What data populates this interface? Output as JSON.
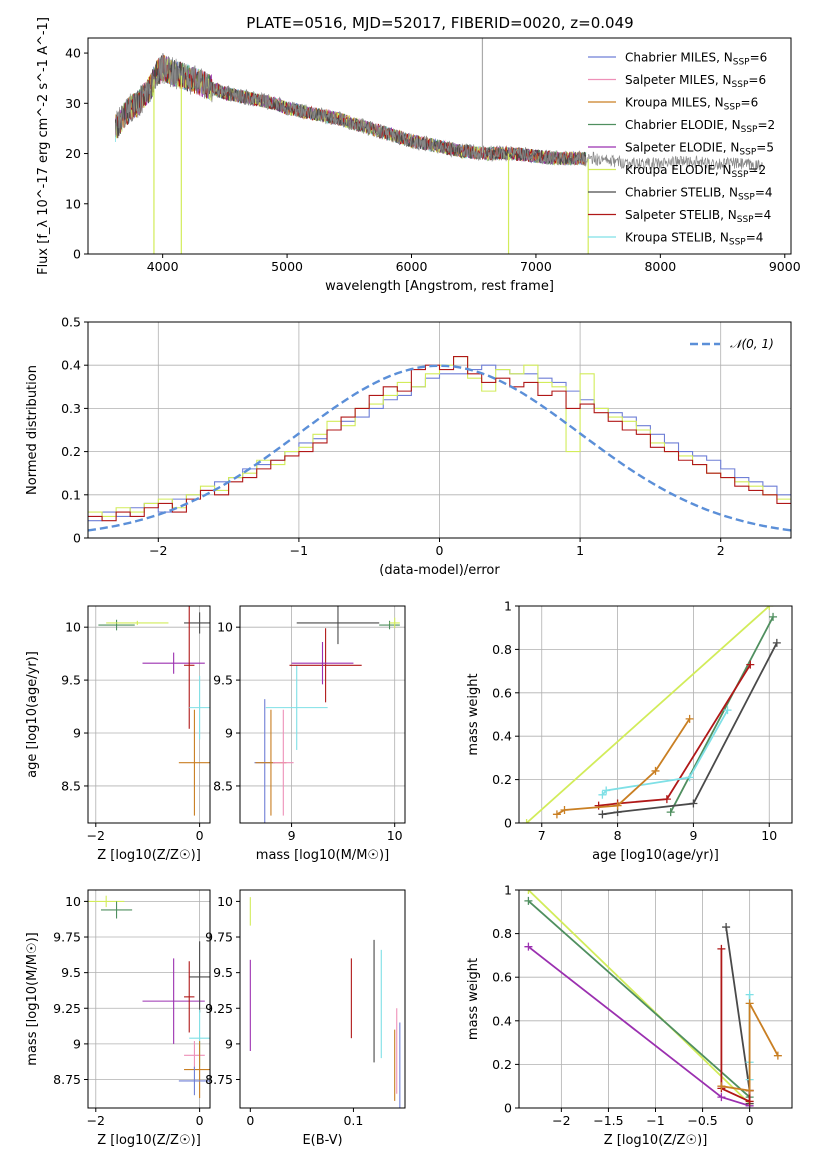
{
  "figure": {
    "title": "PLATE=0516, MJD=52017, FIBERID=0020, z=0.049"
  },
  "colors": {
    "chabrier_miles": "#6f7fd6",
    "salpeter_miles": "#ee90b8",
    "kroupa_miles": "#c97f23",
    "chabrier_elodie": "#4f8f5f",
    "salpeter_elodie": "#9b30b0",
    "kroupa_elodie": "#d2ec5a",
    "chabrier_stelib": "#4a4a4a",
    "salpeter_stelib": "#b01818",
    "kroupa_stelib": "#7fe0e6",
    "normal_curve": "#5b8fd8",
    "grid": "#b0b0b0",
    "spectrum": "#888888"
  },
  "chart_data": [
    {
      "id": "spectrum",
      "type": "line",
      "title": "PLATE=0516, MJD=52017, FIBERID=0020, z=0.049",
      "xlabel": "wavelength [Angstrom, rest frame]",
      "ylabel": "Flux [f_λ 10^-17 erg cm^-2 s^-1 A^-1]",
      "xlim": [
        3400,
        9050
      ],
      "ylim": [
        0,
        43
      ],
      "xticks": [
        4000,
        5000,
        6000,
        7000,
        8000,
        9000
      ],
      "yticks": [
        0,
        10,
        20,
        30,
        40
      ],
      "grid": false,
      "legend_position": "top-right",
      "legend": [
        {
          "label": "Chabrier MILES, N",
          "sub": "SSP",
          "value": "=6",
          "color_key": "chabrier_miles"
        },
        {
          "label": "Salpeter MILES, N",
          "sub": "SSP",
          "value": "=6",
          "color_key": "salpeter_miles"
        },
        {
          "label": "Kroupa MILES, N",
          "sub": "SSP",
          "value": "=6",
          "color_key": "kroupa_miles"
        },
        {
          "label": "Chabrier ELODIE, N",
          "sub": "SSP",
          "value": "=2",
          "color_key": "chabrier_elodie"
        },
        {
          "label": "Salpeter ELODIE, N",
          "sub": "SSP",
          "value": "=5",
          "color_key": "salpeter_elodie"
        },
        {
          "label": "Kroupa ELODIE, N",
          "sub": "SSP",
          "value": "=2",
          "color_key": "kroupa_elodie"
        },
        {
          "label": "Chabrier STELIB, N",
          "sub": "SSP",
          "value": "=4",
          "color_key": "chabrier_stelib"
        },
        {
          "label": "Salpeter STELIB, N",
          "sub": "SSP",
          "value": "=4",
          "color_key": "salpeter_stelib"
        },
        {
          "label": "Kroupa STELIB, N",
          "sub": "SSP",
          "value": "=4",
          "color_key": "kroupa_stelib"
        }
      ],
      "data_x": [
        3620,
        3700,
        3800,
        3900,
        3950,
        4000,
        4100,
        4200,
        4300,
        4400,
        4500,
        4600,
        4700,
        4800,
        4900,
        5000,
        5200,
        5400,
        5600,
        5800,
        6000,
        6200,
        6400,
        6600,
        6800,
        7000,
        7200,
        7400,
        7600,
        7800,
        8000,
        8200,
        8400,
        8600,
        8800
      ],
      "data_y": [
        25,
        28,
        30,
        33,
        36,
        37,
        36,
        35,
        34,
        33,
        32,
        31.5,
        31,
        30.5,
        30,
        29,
        28,
        27,
        25.5,
        24,
        22.5,
        21.5,
        20.5,
        20,
        20,
        19.5,
        19,
        19,
        18.5,
        18,
        18,
        18.5,
        18,
        18,
        17.5
      ],
      "noise_amplitude": 3.5,
      "extra_features": [
        {
          "x": 3930,
          "note": "dip",
          "to": 0
        },
        {
          "x": 4150,
          "note": "dip",
          "to": 0
        },
        {
          "x": 6780,
          "note": "dip",
          "to": 0
        },
        {
          "x": 7420,
          "note": "dip",
          "to": 0
        },
        {
          "x": 6570,
          "note": "spike",
          "to": 43
        }
      ]
    },
    {
      "id": "residuals",
      "type": "histogram",
      "xlabel": "(data-model)/error",
      "ylabel": "Normed distribution",
      "xlim": [
        -2.5,
        2.5
      ],
      "ylim": [
        0,
        0.5
      ],
      "xticks": [
        -2,
        -1,
        0,
        1,
        2
      ],
      "yticks": [
        0,
        0.1,
        0.2,
        0.3,
        0.4,
        0.5
      ],
      "grid": true,
      "legend_position": "top-right",
      "curve_label": "𝒩(0, 1)",
      "bin_width": 0.1,
      "bin_start": -2.5,
      "series": [
        {
          "color_key": "chabrier_miles",
          "values": [
            0.04,
            0.06,
            0.05,
            0.07,
            0.08,
            0.06,
            0.09,
            0.1,
            0.11,
            0.13,
            0.14,
            0.16,
            0.17,
            0.18,
            0.2,
            0.22,
            0.23,
            0.25,
            0.27,
            0.28,
            0.3,
            0.32,
            0.33,
            0.35,
            0.37,
            0.38,
            0.38,
            0.39,
            0.4,
            0.39,
            0.38,
            0.38,
            0.37,
            0.36,
            0.34,
            0.32,
            0.3,
            0.29,
            0.28,
            0.26,
            0.24,
            0.22,
            0.2,
            0.19,
            0.18,
            0.16,
            0.14,
            0.13,
            0.12,
            0.1
          ]
        },
        {
          "color_key": "kroupa_elodie",
          "values": [
            0.06,
            0.05,
            0.07,
            0.06,
            0.08,
            0.09,
            0.07,
            0.1,
            0.12,
            0.11,
            0.14,
            0.15,
            0.18,
            0.17,
            0.2,
            0.21,
            0.24,
            0.27,
            0.26,
            0.3,
            0.31,
            0.33,
            0.36,
            0.35,
            0.38,
            0.4,
            0.42,
            0.37,
            0.34,
            0.39,
            0.38,
            0.4,
            0.36,
            0.35,
            0.2,
            0.38,
            0.3,
            0.28,
            0.27,
            0.25,
            0.22,
            0.2,
            0.19,
            0.17,
            0.15,
            0.14,
            0.13,
            0.12,
            0.1,
            0.09
          ]
        },
        {
          "color_key": "salpeter_stelib",
          "values": [
            0.05,
            0.04,
            0.06,
            0.05,
            0.07,
            0.08,
            0.06,
            0.09,
            0.11,
            0.1,
            0.13,
            0.14,
            0.16,
            0.18,
            0.19,
            0.2,
            0.22,
            0.25,
            0.28,
            0.3,
            0.33,
            0.35,
            0.34,
            0.39,
            0.4,
            0.39,
            0.42,
            0.38,
            0.36,
            0.37,
            0.35,
            0.36,
            0.33,
            0.34,
            0.3,
            0.31,
            0.29,
            0.27,
            0.25,
            0.24,
            0.21,
            0.2,
            0.18,
            0.17,
            0.15,
            0.14,
            0.12,
            0.11,
            0.1,
            0.08
          ]
        }
      ],
      "normal_curve": {
        "mean": 0,
        "sigma": 1
      }
    },
    {
      "id": "age_vs_Z",
      "type": "errorbar",
      "xlabel": "Z [log10(Z/Z☉)]",
      "ylabel": "age [log10(age/yr)]",
      "xlim": [
        -2.15,
        0.2
      ],
      "ylim": [
        8.15,
        10.2
      ],
      "xticks": [
        -2,
        0
      ],
      "yticks": [
        8.5,
        9.0,
        9.5,
        10.0
      ],
      "grid": true,
      "points": [
        {
          "x": -1.6,
          "y": 10.02,
          "xerr": 0.35,
          "yerr": 0.05,
          "color_key": "chabrier_elodie"
        },
        {
          "x": -1.2,
          "y": 10.04,
          "xerr": 0.6,
          "yerr": 0.02,
          "color_key": "kroupa_elodie"
        },
        {
          "x": -0.5,
          "y": 9.66,
          "xerr": 0.6,
          "yerr": 0.1,
          "color_key": "salpeter_elodie"
        },
        {
          "x": 0.0,
          "y": 10.04,
          "xerr": 0.3,
          "yerr": 0.1,
          "color_key": "chabrier_stelib"
        },
        {
          "x": -0.2,
          "y": 9.64,
          "xerr": 0.1,
          "yerr": 0.6,
          "color_key": "salpeter_stelib"
        },
        {
          "x": 0.0,
          "y": 9.24,
          "xerr": 0.2,
          "yerr": 0.3,
          "color_key": "kroupa_stelib"
        },
        {
          "x": -0.1,
          "y": 8.72,
          "xerr": 0.3,
          "yerr": 0.5,
          "color_key": "kroupa_miles"
        }
      ]
    },
    {
      "id": "age_vs_mass",
      "type": "errorbar",
      "xlabel": "mass [log10(M/M☉)]",
      "ylabel": "",
      "xlim": [
        8.5,
        10.1
      ],
      "ylim": [
        8.15,
        10.2
      ],
      "xticks": [
        9,
        10
      ],
      "yticks": [
        8.5,
        9.0,
        9.5,
        10.0
      ],
      "grid": true,
      "points": [
        {
          "x": 8.74,
          "y": 8.72,
          "xerr": 0.1,
          "yerr": 0.6,
          "color_key": "chabrier_miles"
        },
        {
          "x": 8.8,
          "y": 8.72,
          "xerr": 0.15,
          "yerr": 0.5,
          "color_key": "kroupa_miles"
        },
        {
          "x": 8.92,
          "y": 8.72,
          "xerr": 0.1,
          "yerr": 0.5,
          "color_key": "salpeter_miles"
        },
        {
          "x": 9.05,
          "y": 9.24,
          "xerr": 0.3,
          "yerr": 0.4,
          "color_key": "kroupa_stelib"
        },
        {
          "x": 9.33,
          "y": 9.64,
          "xerr": 0.35,
          "yerr": 0.35,
          "color_key": "salpeter_stelib"
        },
        {
          "x": 9.45,
          "y": 10.04,
          "xerr": 0.4,
          "yerr": 0.2,
          "color_key": "chabrier_stelib"
        },
        {
          "x": 9.3,
          "y": 9.66,
          "xerr": 0.3,
          "yerr": 0.2,
          "color_key": "salpeter_elodie"
        },
        {
          "x": 9.95,
          "y": 10.02,
          "xerr": 0.1,
          "yerr": 0.04,
          "color_key": "chabrier_elodie"
        },
        {
          "x": 10.0,
          "y": 10.04,
          "xerr": 0.05,
          "yerr": 0.05,
          "color_key": "kroupa_elodie"
        }
      ]
    },
    {
      "id": "massweight_vs_age",
      "type": "line",
      "xlabel": "age [log10(age/yr)]",
      "ylabel": "mass weight",
      "xlim": [
        6.7,
        10.3
      ],
      "ylim": [
        0,
        1.0
      ],
      "xticks": [
        7,
        8,
        9,
        10
      ],
      "yticks": [
        0.0,
        0.2,
        0.4,
        0.6,
        0.8,
        1.0
      ],
      "grid": true,
      "series": [
        {
          "color_key": "kroupa_elodie",
          "x": [
            6.8,
            10.0
          ],
          "y": [
            0.0,
            1.0
          ]
        },
        {
          "color_key": "chabrier_elodie",
          "x": [
            8.7,
            10.05
          ],
          "y": [
            0.05,
            0.95
          ]
        },
        {
          "color_key": "chabrier_stelib",
          "x": [
            7.8,
            8.0,
            9.0,
            10.1
          ],
          "y": [
            0.04,
            0.05,
            0.09,
            0.83
          ]
        },
        {
          "color_key": "salpeter_stelib",
          "x": [
            7.75,
            8.0,
            8.65,
            9.75
          ],
          "y": [
            0.08,
            0.09,
            0.11,
            0.73
          ]
        },
        {
          "color_key": "kroupa_stelib",
          "x": [
            7.8,
            7.85,
            8.95,
            9.45
          ],
          "y": [
            0.13,
            0.15,
            0.21,
            0.52
          ]
        },
        {
          "color_key": "kroupa_miles",
          "x": [
            7.2,
            7.3,
            8.0,
            8.5,
            8.95
          ],
          "y": [
            0.04,
            0.06,
            0.08,
            0.24,
            0.48
          ]
        }
      ]
    },
    {
      "id": "mass_vs_Z",
      "type": "errorbar",
      "xlabel": "Z [log10(Z/Z☉)]",
      "ylabel": "mass [log10(M/M☉)]",
      "xlim": [
        -2.15,
        0.2
      ],
      "ylim": [
        8.55,
        10.08
      ],
      "xticks": [
        -2,
        0
      ],
      "yticks": [
        8.75,
        9.0,
        9.25,
        9.5,
        9.75,
        10.0
      ],
      "grid": true,
      "points": [
        {
          "x": -1.8,
          "y": 10.0,
          "xerr": 0.35,
          "yerr": 0.04,
          "color_key": "kroupa_elodie"
        },
        {
          "x": -1.6,
          "y": 9.94,
          "xerr": 0.3,
          "yerr": 0.06,
          "color_key": "chabrier_elodie"
        },
        {
          "x": -0.5,
          "y": 9.3,
          "xerr": 0.6,
          "yerr": 0.3,
          "color_key": "salpeter_elodie"
        },
        {
          "x": 0.0,
          "y": 9.47,
          "xerr": 0.2,
          "yerr": 0.25,
          "color_key": "chabrier_stelib"
        },
        {
          "x": -0.2,
          "y": 9.33,
          "xerr": 0.1,
          "yerr": 0.25,
          "color_key": "salpeter_stelib"
        },
        {
          "x": 0.0,
          "y": 9.04,
          "xerr": 0.2,
          "yerr": 0.2,
          "color_key": "kroupa_stelib"
        },
        {
          "x": -0.1,
          "y": 8.92,
          "xerr": 0.2,
          "yerr": 0.1,
          "color_key": "salpeter_miles"
        },
        {
          "x": 0.0,
          "y": 8.82,
          "xerr": 0.3,
          "yerr": 0.2,
          "color_key": "kroupa_miles"
        },
        {
          "x": -0.1,
          "y": 8.74,
          "xerr": 0.3,
          "yerr": 0.1,
          "color_key": "chabrier_miles"
        }
      ]
    },
    {
      "id": "mass_vs_ebv",
      "type": "errorbar",
      "xlabel": "E(B-V)",
      "ylabel": "",
      "xlim": [
        -0.01,
        0.15
      ],
      "ylim": [
        8.55,
        10.08
      ],
      "xticks": [
        0.0,
        0.1
      ],
      "yticks": [
        8.75,
        9.0,
        9.25,
        9.5,
        9.75,
        10.0
      ],
      "grid": false,
      "points": [
        {
          "x": 0.0,
          "y": 9.93,
          "xerr": 0,
          "yerr": 0.1,
          "color_key": "kroupa_elodie"
        },
        {
          "x": 0.0,
          "y": 9.27,
          "xerr": 0,
          "yerr": 0.32,
          "color_key": "salpeter_elodie"
        },
        {
          "x": 0.098,
          "y": 9.32,
          "xerr": 0,
          "yerr": 0.28,
          "color_key": "salpeter_stelib"
        },
        {
          "x": 0.12,
          "y": 9.3,
          "xerr": 0,
          "yerr": 0.43,
          "color_key": "chabrier_stelib"
        },
        {
          "x": 0.127,
          "y": 9.28,
          "xerr": 0,
          "yerr": 0.38,
          "color_key": "kroupa_stelib"
        },
        {
          "x": 0.14,
          "y": 8.85,
          "xerr": 0,
          "yerr": 0.25,
          "color_key": "kroupa_miles"
        },
        {
          "x": 0.142,
          "y": 8.95,
          "xerr": 0,
          "yerr": 0.3,
          "color_key": "salpeter_miles"
        },
        {
          "x": 0.145,
          "y": 8.85,
          "xerr": 0,
          "yerr": 0.3,
          "color_key": "chabrier_miles"
        }
      ]
    },
    {
      "id": "massweight_vs_Z",
      "type": "line",
      "xlabel": "Z [log10(Z/Z☉)]",
      "ylabel": "mass weight",
      "xlim": [
        -2.45,
        0.45
      ],
      "ylim": [
        0,
        1.0
      ],
      "xticks": [
        -2.0,
        -1.5,
        -1.0,
        -0.5,
        0.0
      ],
      "yticks": [
        0.0,
        0.2,
        0.4,
        0.6,
        0.8,
        1.0
      ],
      "grid": true,
      "series": [
        {
          "color_key": "kroupa_elodie",
          "x": [
            -2.35,
            0.0
          ],
          "y": [
            1.0,
            0.02
          ]
        },
        {
          "color_key": "chabrier_elodie",
          "x": [
            -2.35,
            0.0
          ],
          "y": [
            0.95,
            0.05
          ]
        },
        {
          "color_key": "salpeter_elodie",
          "x": [
            -2.35,
            -0.3,
            0.0
          ],
          "y": [
            0.74,
            0.05,
            0.01
          ]
        },
        {
          "color_key": "chabrier_stelib",
          "x": [
            -0.25,
            0.0,
            0.0
          ],
          "y": [
            0.83,
            0.08,
            0.02
          ]
        },
        {
          "color_key": "salpeter_stelib",
          "x": [
            -0.3,
            -0.3,
            0.0,
            0.0
          ],
          "y": [
            0.73,
            0.09,
            0.03,
            0.08
          ]
        },
        {
          "color_key": "kroupa_stelib",
          "x": [
            0.0,
            0.0,
            0.0
          ],
          "y": [
            0.52,
            0.21,
            0.13
          ]
        },
        {
          "color_key": "kroupa_miles",
          "x": [
            0.3,
            0.0,
            0.0,
            -0.3
          ],
          "y": [
            0.24,
            0.48,
            0.08,
            0.1
          ]
        }
      ]
    }
  ]
}
